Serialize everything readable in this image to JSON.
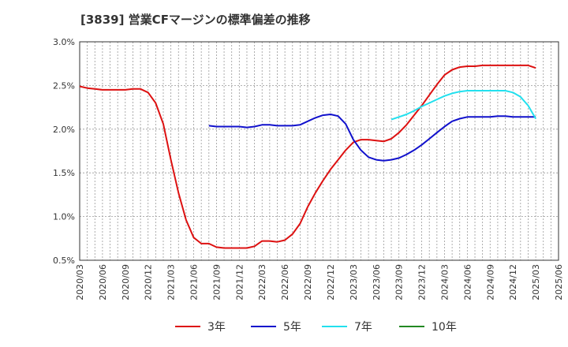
{
  "chart_data": {
    "type": "line",
    "title": "[3839]  営業CFマージンの標準偏差の推移",
    "xlabel": "",
    "ylabel": "",
    "x_ticks": [
      "2020/03",
      "2020/06",
      "2020/09",
      "2020/12",
      "2021/03",
      "2021/06",
      "2021/09",
      "2021/12",
      "2022/03",
      "2022/06",
      "2022/09",
      "2022/12",
      "2023/03",
      "2023/06",
      "2023/09",
      "2023/12",
      "2024/03",
      "2024/06",
      "2024/09",
      "2024/12",
      "2025/03",
      "2025/06"
    ],
    "y_ticks": [
      "0.5%",
      "1.0%",
      "1.5%",
      "2.0%",
      "2.5%",
      "3.0%"
    ],
    "ylim": [
      0.5,
      3.0
    ],
    "grid": true,
    "legend_position": "bottom",
    "colors": {
      "3年": "#dd1111",
      "5年": "#1111cc",
      "7年": "#22e0ee",
      "10年": "#228822"
    },
    "series": [
      {
        "name": "3年",
        "x": [
          "2020/03",
          "2020/04",
          "2020/05",
          "2020/06",
          "2020/07",
          "2020/08",
          "2020/09",
          "2020/10",
          "2020/11",
          "2020/12",
          "2021/01",
          "2021/02",
          "2021/03",
          "2021/04",
          "2021/05",
          "2021/06",
          "2021/07",
          "2021/08",
          "2021/09",
          "2021/10",
          "2021/11",
          "2021/12",
          "2022/01",
          "2022/02",
          "2022/03",
          "2022/04",
          "2022/05",
          "2022/06",
          "2022/07",
          "2022/08",
          "2022/09",
          "2022/10",
          "2022/11",
          "2022/12",
          "2023/01",
          "2023/02",
          "2023/03",
          "2023/04",
          "2023/05",
          "2023/06",
          "2023/07",
          "2023/08",
          "2023/09",
          "2023/10",
          "2023/11",
          "2023/12",
          "2024/01",
          "2024/02",
          "2024/03",
          "2024/04",
          "2024/05",
          "2024/06",
          "2024/07",
          "2024/08",
          "2024/09",
          "2024/10",
          "2024/11",
          "2024/12",
          "2025/01",
          "2025/02",
          "2025/03"
        ],
        "values": [
          2.49,
          2.47,
          2.46,
          2.45,
          2.45,
          2.45,
          2.45,
          2.46,
          2.46,
          2.42,
          2.3,
          2.06,
          1.65,
          1.27,
          0.96,
          0.76,
          0.69,
          0.69,
          0.65,
          0.64,
          0.64,
          0.64,
          0.64,
          0.66,
          0.72,
          0.72,
          0.71,
          0.73,
          0.8,
          0.92,
          1.11,
          1.27,
          1.41,
          1.54,
          1.65,
          1.76,
          1.85,
          1.88,
          1.88,
          1.87,
          1.86,
          1.89,
          1.96,
          2.05,
          2.16,
          2.27,
          2.39,
          2.51,
          2.62,
          2.68,
          2.71,
          2.72,
          2.72,
          2.73,
          2.73,
          2.73,
          2.73,
          2.73,
          2.73,
          2.73,
          2.7
        ]
      },
      {
        "name": "5年",
        "x": [
          "2021/08",
          "2021/09",
          "2021/10",
          "2021/11",
          "2021/12",
          "2022/01",
          "2022/02",
          "2022/03",
          "2022/04",
          "2022/05",
          "2022/06",
          "2022/07",
          "2022/08",
          "2022/09",
          "2022/10",
          "2022/11",
          "2022/12",
          "2023/01",
          "2023/02",
          "2023/03",
          "2023/04",
          "2023/05",
          "2023/06",
          "2023/07",
          "2023/08",
          "2023/09",
          "2023/10",
          "2023/11",
          "2023/12",
          "2024/01",
          "2024/02",
          "2024/03",
          "2024/04",
          "2024/05",
          "2024/06",
          "2024/07",
          "2024/08",
          "2024/09",
          "2024/10",
          "2024/11",
          "2024/12",
          "2025/01",
          "2025/02",
          "2025/03"
        ],
        "values": [
          2.04,
          2.03,
          2.03,
          2.03,
          2.03,
          2.02,
          2.03,
          2.05,
          2.05,
          2.04,
          2.04,
          2.04,
          2.05,
          2.09,
          2.13,
          2.16,
          2.17,
          2.15,
          2.06,
          1.88,
          1.76,
          1.68,
          1.65,
          1.64,
          1.65,
          1.67,
          1.71,
          1.76,
          1.82,
          1.89,
          1.96,
          2.03,
          2.09,
          2.12,
          2.14,
          2.14,
          2.14,
          2.14,
          2.15,
          2.15,
          2.14,
          2.14,
          2.14,
          2.14
        ]
      },
      {
        "name": "7年",
        "x": [
          "2023/08",
          "2023/09",
          "2023/10",
          "2023/11",
          "2023/12",
          "2024/01",
          "2024/02",
          "2024/03",
          "2024/04",
          "2024/05",
          "2024/06",
          "2024/07",
          "2024/08",
          "2024/09",
          "2024/10",
          "2024/11",
          "2024/12",
          "2025/01",
          "2025/02",
          "2025/03"
        ],
        "values": [
          2.11,
          2.14,
          2.17,
          2.21,
          2.26,
          2.3,
          2.34,
          2.38,
          2.41,
          2.43,
          2.44,
          2.44,
          2.44,
          2.44,
          2.44,
          2.44,
          2.42,
          2.37,
          2.27,
          2.12
        ]
      },
      {
        "name": "10年",
        "x": [],
        "values": []
      }
    ]
  }
}
